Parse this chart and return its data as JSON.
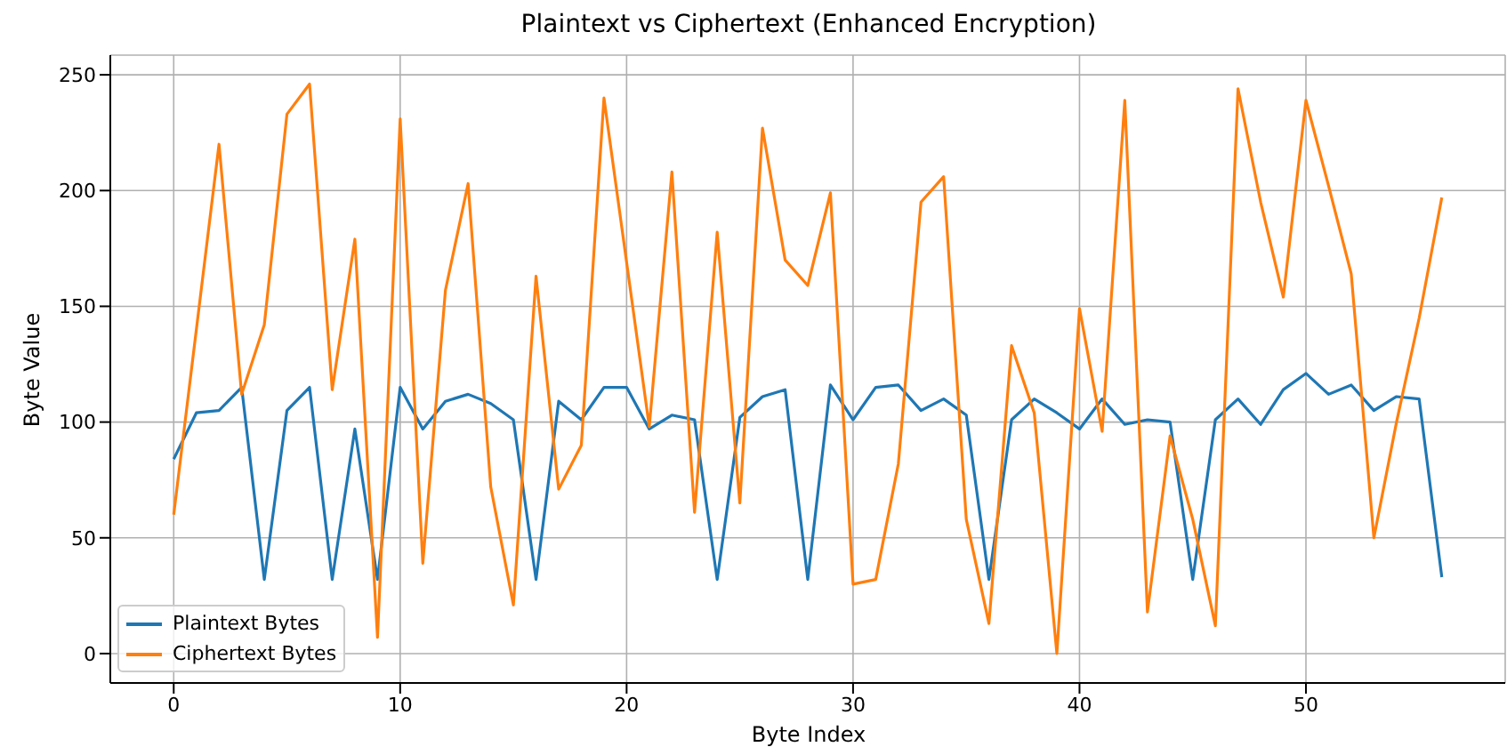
{
  "chart_data": {
    "type": "line",
    "title": "Plaintext vs Ciphertext (Enhanced Encryption)",
    "xlabel": "Byte Index",
    "ylabel": "Byte Value",
    "x": [
      0,
      1,
      2,
      3,
      4,
      5,
      6,
      7,
      8,
      9,
      10,
      11,
      12,
      13,
      14,
      15,
      16,
      17,
      18,
      19,
      20,
      21,
      22,
      23,
      24,
      25,
      26,
      27,
      28,
      29,
      30,
      31,
      32,
      33,
      34,
      35,
      36,
      37,
      38,
      39,
      40,
      41,
      42,
      43,
      44,
      45,
      46,
      47,
      48,
      49,
      50,
      51,
      52,
      53,
      54,
      55,
      56
    ],
    "series": [
      {
        "name": "Plaintext Bytes",
        "color": "#1f77b4",
        "values": [
          84,
          104,
          105,
          115,
          32,
          105,
          115,
          32,
          97,
          32,
          115,
          97,
          109,
          112,
          108,
          101,
          32,
          109,
          101,
          115,
          115,
          97,
          103,
          101,
          32,
          102,
          111,
          114,
          32,
          116,
          101,
          115,
          116,
          105,
          110,
          103,
          32,
          101,
          110,
          104,
          97,
          110,
          99,
          101,
          100,
          32,
          101,
          110,
          99,
          114,
          121,
          112,
          116,
          105,
          111,
          110,
          33
        ]
      },
      {
        "name": "Ciphertext Bytes",
        "color": "#ff7f0e",
        "values": [
          60,
          140,
          220,
          112,
          142,
          233,
          246,
          114,
          179,
          7,
          231,
          39,
          157,
          203,
          72,
          21,
          163,
          71,
          90,
          240,
          169,
          98,
          208,
          61,
          182,
          65,
          227,
          170,
          159,
          199,
          30,
          32,
          82,
          195,
          206,
          58,
          13,
          133,
          104,
          0,
          149,
          96,
          239,
          18,
          94,
          58,
          12,
          244,
          195,
          154,
          239,
          202,
          164,
          50,
          100,
          145,
          197
        ]
      }
    ],
    "xlim": [
      -2.8,
      58.8
    ],
    "ylim": [
      -12.7,
      258.5
    ],
    "xticks": [
      0,
      10,
      20,
      30,
      40,
      50
    ],
    "yticks": [
      0,
      50,
      100,
      150,
      200,
      250
    ],
    "grid": true,
    "legend": "bottom left",
    "marker": "none",
    "line_style": "solid"
  }
}
